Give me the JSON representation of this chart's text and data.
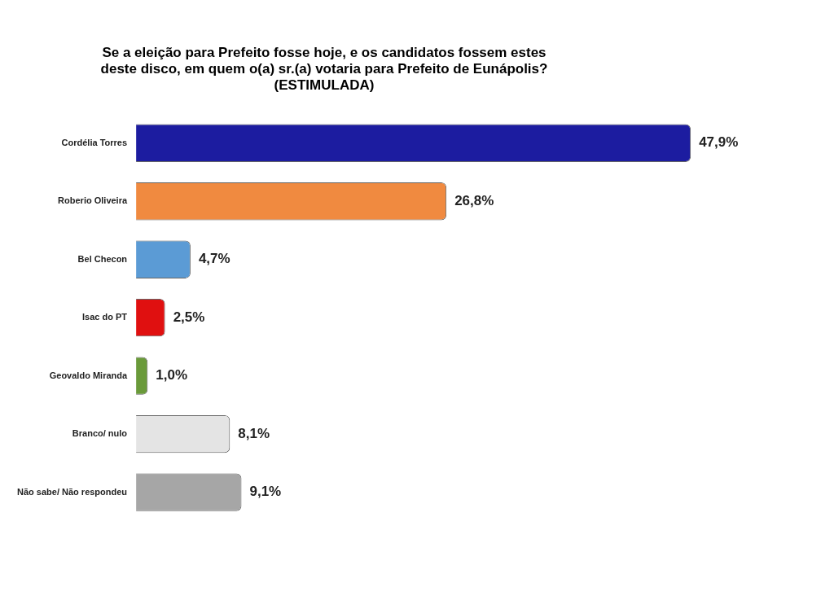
{
  "chart_data": {
    "type": "bar",
    "orientation": "horizontal",
    "title": "Se a eleição para Prefeito fosse hoje, e os candidatos fossem estes deste disco, em quem o(a) sr.(a) votaria para Prefeito de Eunápolis?",
    "subtitle": "(ESTIMULADA)",
    "categories": [
      "Cordélia Torres",
      "Roberio Oliveira",
      "Bel Checon",
      "Isac do PT",
      "Geovaldo Miranda",
      "Branco/ nulo",
      "Não sabe/ Não respondeu"
    ],
    "values": [
      47.9,
      26.8,
      4.7,
      2.5,
      1.0,
      8.1,
      9.1
    ],
    "value_labels": [
      "47,9%",
      "26,8%",
      "4,7%",
      "2,5%",
      "1,0%",
      "8,1%",
      "9,1%"
    ],
    "colors": [
      "#1c1ca0",
      "#f08a40",
      "#5b9bd5",
      "#e01010",
      "#6a9a3a",
      "#e4e4e4",
      "#a6a6a6"
    ],
    "tick_labels": "y",
    "grid": false,
    "legend": false
  }
}
